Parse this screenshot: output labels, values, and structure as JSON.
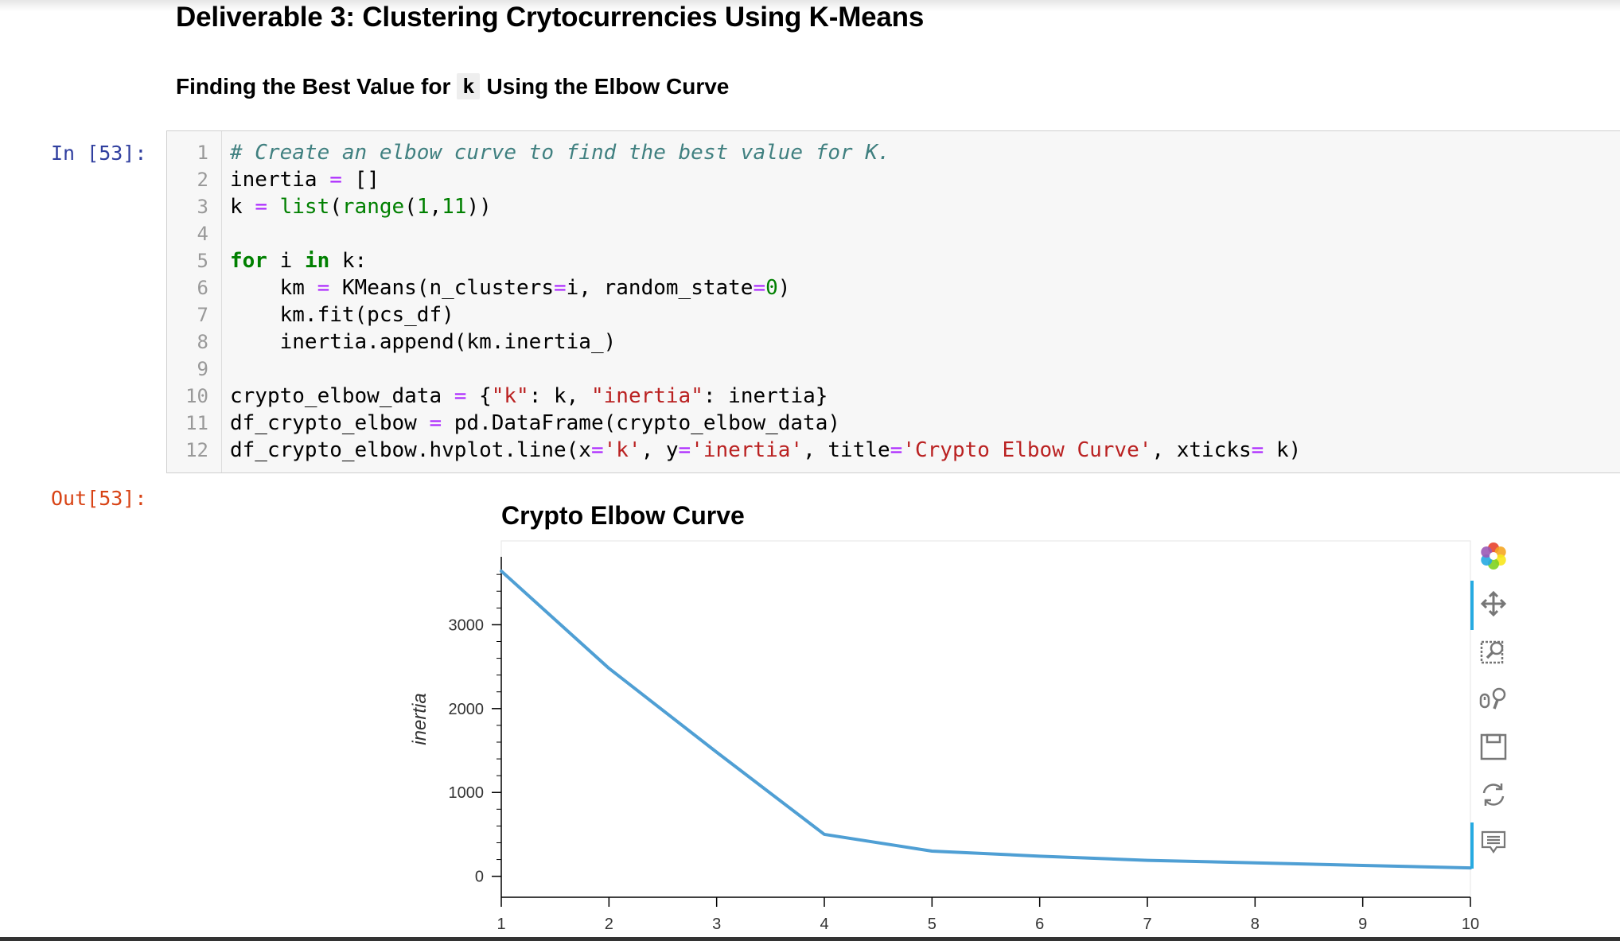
{
  "notebook": {
    "heading": "Deliverable 3: Clustering Crytocurrencies Using K-Means",
    "subheading": {
      "before": "Finding the Best Value for",
      "code": "k",
      "after": "Using the Elbow Curve"
    },
    "input_prompt": "In [53]:",
    "output_prompt": "Out[53]:",
    "line_numbers": [
      "1",
      "2",
      "3",
      "4",
      "5",
      "6",
      "7",
      "8",
      "9",
      "10",
      "11",
      "12"
    ],
    "code": {
      "l1": "# Create an elbow curve to find the best value for K.",
      "l2": [
        "inertia ",
        "=",
        " []"
      ],
      "l3": [
        "k ",
        "=",
        " ",
        "list",
        "(",
        "range",
        "(",
        "1",
        ",",
        "11",
        "))"
      ],
      "l5": [
        "for",
        " i ",
        "in",
        " k:"
      ],
      "l6": [
        "    km ",
        "=",
        " KMeans(n_clusters",
        "=",
        "i, random_state",
        "=",
        "0",
        ")"
      ],
      "l7": "    km.fit(pcs_df)",
      "l8": "    inertia.append(km.inertia_)",
      "l10": [
        "crypto_elbow_data ",
        "=",
        " {",
        "\"k\"",
        ": k, ",
        "\"inertia\"",
        ": inertia}"
      ],
      "l11": [
        "df_crypto_elbow ",
        "=",
        " pd.DataFrame(crypto_elbow_data)"
      ],
      "l12": [
        "df_crypto_elbow.hvplot.line(x",
        "=",
        "'k'",
        ", y",
        "=",
        "'inertia'",
        ", title",
        "=",
        "'Crypto Elbow Curve'",
        ", xticks",
        "=",
        " k)"
      ]
    }
  },
  "chart_data": {
    "type": "line",
    "title": "Crypto Elbow Curve",
    "xlabel": "",
    "ylabel": "inertia",
    "x": [
      1,
      2,
      3,
      4,
      5,
      6,
      7,
      8,
      9,
      10
    ],
    "series": [
      {
        "values": [
          3640,
          2480,
          1480,
          500,
          300,
          240,
          190,
          160,
          130,
          100
        ]
      }
    ],
    "x_ticks": [
      "1",
      "2",
      "3",
      "4",
      "5",
      "6",
      "7",
      "8",
      "9",
      "10"
    ],
    "y_ticks": [
      "0",
      "1000",
      "2000",
      "3000"
    ],
    "xlim": [
      1,
      10
    ],
    "ylim": [
      -250,
      4000
    ],
    "line_color": "#4f9fd4",
    "grid": false
  },
  "toolbar": {
    "tools": [
      "bokeh-logo-icon",
      "pan-icon",
      "box-zoom-icon",
      "wheel-zoom-icon",
      "save-icon",
      "reset-icon",
      "hover-icon"
    ]
  }
}
